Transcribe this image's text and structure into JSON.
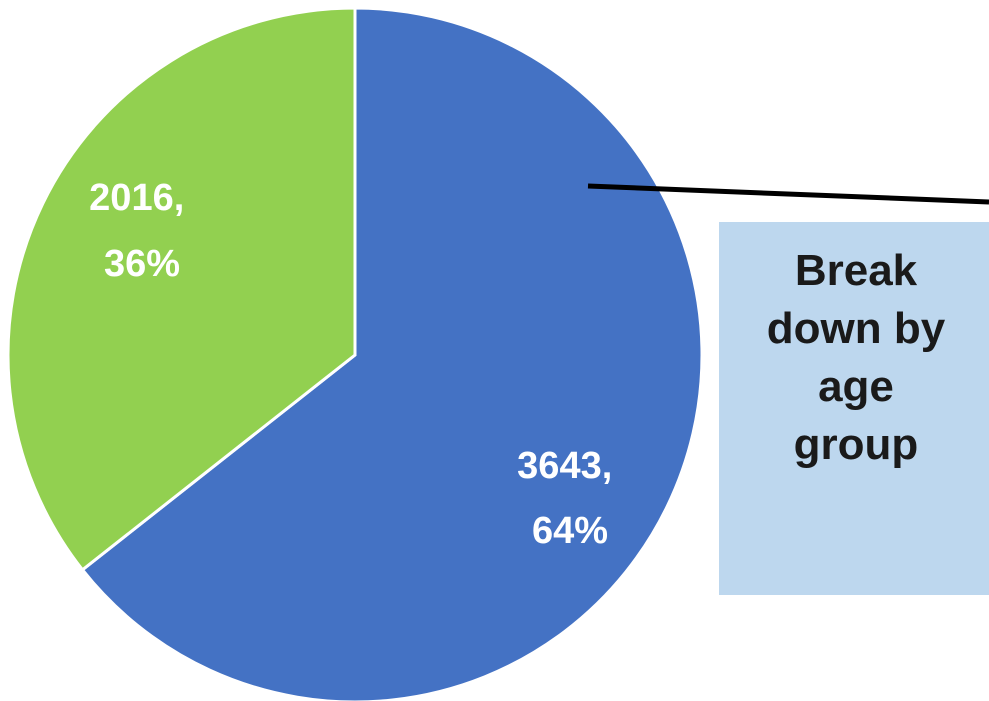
{
  "chart_data": {
    "type": "pie",
    "slices": [
      {
        "value": 3643,
        "percent": "64%",
        "color": "#4472c4",
        "label_value": "3643,",
        "label_percent": "64%"
      },
      {
        "value": 2016,
        "percent": "36%",
        "color": "#92d050",
        "label_value": "2016,",
        "label_percent": "36%"
      }
    ],
    "start_angle_deg": 0,
    "direction": "clockwise",
    "callout": {
      "lines": [
        "Break",
        "down by",
        "age",
        "group"
      ],
      "background": "#bdd7ee",
      "connector_color": "#000000"
    }
  }
}
